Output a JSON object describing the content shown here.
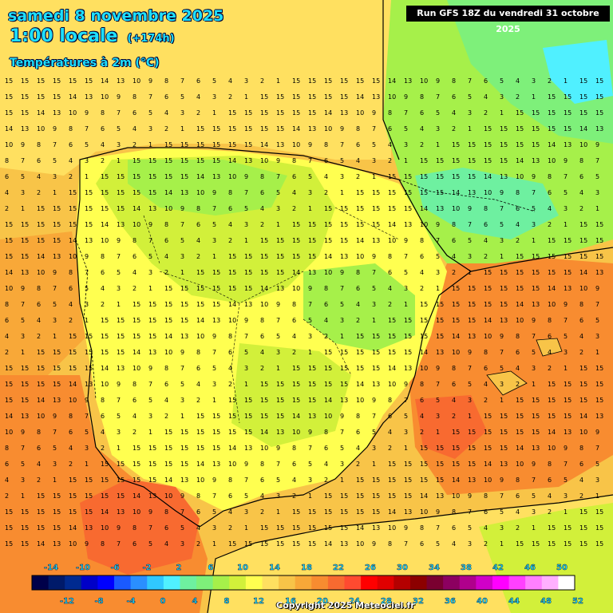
{
  "header": {
    "date": "samedi 8 novembre 2025",
    "time": "1:00 locale",
    "offset": "(+174h)",
    "variable": "Températures à 2m (°C)",
    "run": "Run GFS 18Z du vendredi 31 octobre 2025"
  },
  "footer": {
    "copyright": "Copyright 2025 Meteociel.fr"
  },
  "legend": {
    "top_labels": [
      "-14",
      "-10",
      "-6",
      "-2",
      "2",
      "6",
      "10",
      "14",
      "18",
      "22",
      "26",
      "30",
      "34",
      "38",
      "42",
      "46",
      "50"
    ],
    "bottom_labels": [
      "-12",
      "-8",
      "-4",
      "0",
      "4",
      "8",
      "12",
      "16",
      "20",
      "24",
      "28",
      "32",
      "36",
      "40",
      "44",
      "48",
      "52"
    ],
    "colors": [
      "#00004a",
      "#001a6a",
      "#002a90",
      "#0000c8",
      "#0000ff",
      "#1a5aff",
      "#2a8fff",
      "#30c8ff",
      "#50f0ff",
      "#6ef0a0",
      "#7ef07a",
      "#a6f04a",
      "#d2f03a",
      "#ffff50",
      "#ffe060",
      "#f8c448",
      "#f8a838",
      "#f88c30",
      "#f86a30",
      "#ff4a30",
      "#ff0000",
      "#e00000",
      "#b40000",
      "#8c0000",
      "#7a0030",
      "#8c0060",
      "#b0008c",
      "#d000c8",
      "#ff00ff",
      "#ff40ff",
      "#ff80ff",
      "#ffb0ff",
      "#ffffff"
    ]
  },
  "map": {
    "region": "Spain",
    "values_row_sample": [
      "15",
      "15",
      "15",
      "15",
      "15",
      "15",
      "14",
      "13",
      "10",
      "9",
      "8",
      "7",
      "6",
      "5",
      "4",
      "3",
      "2",
      "1"
    ]
  }
}
